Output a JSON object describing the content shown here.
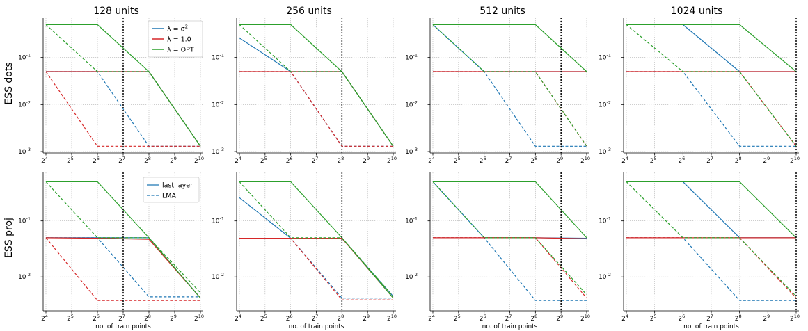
{
  "figure": {
    "column_titles": [
      "128 units",
      "256 units",
      "512 units",
      "1024 units"
    ],
    "row_labels": [
      "ESS dots",
      "ESS proj"
    ],
    "xlabel": "no. of train points",
    "legend_lambda": {
      "entries": [
        {
          "pre": "λ = σ",
          "sup": "2",
          "color": "#1f77b4"
        },
        {
          "pre": "λ = 1.0",
          "sup": "",
          "color": "#d62728"
        },
        {
          "pre": "λ =  OPT",
          "sup": "",
          "color": "#2ca02c"
        }
      ]
    },
    "legend_style": {
      "entries": [
        {
          "label": "last layer",
          "style": "solid"
        },
        {
          "label": "LMA",
          "style": "dashed"
        }
      ]
    },
    "colors": {
      "sigma2": "#1f77b4",
      "one": "#d62728",
      "opt": "#2ca02c"
    }
  },
  "chart_data": [
    {
      "type": "line",
      "title": "128 units",
      "ylabel": "ESS dots",
      "xlabel": "",
      "x_scale": "log2",
      "y_scale": "log10",
      "x": [
        16,
        64,
        256,
        1024
      ],
      "xlim": [
        16,
        1024
      ],
      "ylim": [
        0.001,
        0.6
      ],
      "x_ticks": [
        16,
        32,
        64,
        128,
        256,
        512,
        1024
      ],
      "y_ticks": [
        0.001,
        0.01,
        0.1
      ],
      "vline": 128,
      "series": [
        {
          "name": "λ = σ², last layer",
          "color": "sigma2",
          "style": "solid",
          "values": [
            0.05,
            0.05,
            0.05,
            0.0013
          ]
        },
        {
          "name": "λ = σ², LMA",
          "color": "sigma2",
          "style": "dashed",
          "values": [
            0.05,
            0.05,
            0.0013,
            0.0013
          ]
        },
        {
          "name": "λ = 1.0, last layer",
          "color": "one",
          "style": "solid",
          "values": [
            0.05,
            0.05,
            0.05,
            0.0013
          ]
        },
        {
          "name": "λ = 1.0, LMA",
          "color": "one",
          "style": "dashed",
          "values": [
            0.05,
            0.0013,
            0.0013,
            0.0013
          ]
        },
        {
          "name": "λ = OPT, last layer",
          "color": "opt",
          "style": "solid",
          "values": [
            0.5,
            0.5,
            0.05,
            0.0013
          ]
        },
        {
          "name": "λ = OPT, LMA",
          "color": "opt",
          "style": "dashed",
          "values": [
            0.5,
            0.05,
            0.05,
            0.0013
          ]
        }
      ]
    },
    {
      "type": "line",
      "title": "256 units",
      "ylabel": "",
      "xlabel": "",
      "x_scale": "log2",
      "y_scale": "log10",
      "x": [
        16,
        64,
        256,
        1024
      ],
      "xlim": [
        16,
        1024
      ],
      "ylim": [
        0.001,
        0.6
      ],
      "x_ticks": [
        16,
        32,
        64,
        128,
        256,
        512,
        1024
      ],
      "y_ticks": [
        0.001,
        0.01,
        0.1
      ],
      "vline": 256,
      "series": [
        {
          "name": "λ = σ², last layer",
          "color": "sigma2",
          "style": "solid",
          "values": [
            0.26,
            0.05,
            0.05,
            0.0013
          ]
        },
        {
          "name": "λ = σ², LMA",
          "color": "sigma2",
          "style": "dashed",
          "values": [
            0.05,
            0.05,
            0.0013,
            0.0013
          ]
        },
        {
          "name": "λ = 1.0, last layer",
          "color": "one",
          "style": "solid",
          "values": [
            0.05,
            0.05,
            0.05,
            0.0013
          ]
        },
        {
          "name": "λ = 1.0, LMA",
          "color": "one",
          "style": "dashed",
          "values": [
            0.05,
            0.05,
            0.0013,
            0.0013
          ]
        },
        {
          "name": "λ = OPT, last layer",
          "color": "opt",
          "style": "solid",
          "values": [
            0.5,
            0.5,
            0.05,
            0.0013
          ]
        },
        {
          "name": "λ = OPT, LMA",
          "color": "opt",
          "style": "dashed",
          "values": [
            0.5,
            0.05,
            0.05,
            0.0013
          ]
        }
      ]
    },
    {
      "type": "line",
      "title": "512 units",
      "ylabel": "",
      "xlabel": "",
      "x_scale": "log2",
      "y_scale": "log10",
      "x": [
        16,
        64,
        256,
        1024
      ],
      "xlim": [
        16,
        1024
      ],
      "ylim": [
        0.001,
        0.6
      ],
      "x_ticks": [
        16,
        32,
        64,
        128,
        256,
        512,
        1024
      ],
      "y_ticks": [
        0.001,
        0.01,
        0.1
      ],
      "vline": 512,
      "series": [
        {
          "name": "λ = σ², last layer",
          "color": "sigma2",
          "style": "solid",
          "values": [
            0.5,
            0.05,
            0.05,
            0.05
          ]
        },
        {
          "name": "λ = σ², LMA",
          "color": "sigma2",
          "style": "dashed",
          "values": [
            0.05,
            0.05,
            0.0013,
            0.0013
          ]
        },
        {
          "name": "λ = 1.0, last layer",
          "color": "one",
          "style": "solid",
          "values": [
            0.05,
            0.05,
            0.05,
            0.05
          ]
        },
        {
          "name": "λ = 1.0, LMA",
          "color": "one",
          "style": "dashed",
          "values": [
            0.05,
            0.05,
            0.05,
            0.0013
          ]
        },
        {
          "name": "λ = OPT, last layer",
          "color": "opt",
          "style": "solid",
          "values": [
            0.5,
            0.5,
            0.5,
            0.05
          ]
        },
        {
          "name": "λ = OPT, LMA",
          "color": "opt",
          "style": "dashed",
          "values": [
            0.5,
            0.05,
            0.05,
            0.0013
          ]
        }
      ]
    },
    {
      "type": "line",
      "title": "1024 units",
      "ylabel": "",
      "xlabel": "",
      "x_scale": "log2",
      "y_scale": "log10",
      "x": [
        16,
        64,
        256,
        1024
      ],
      "xlim": [
        16,
        1024
      ],
      "ylim": [
        0.001,
        0.6
      ],
      "x_ticks": [
        16,
        32,
        64,
        128,
        256,
        512,
        1024
      ],
      "y_ticks": [
        0.001,
        0.01,
        0.1
      ],
      "vline": 1024,
      "series": [
        {
          "name": "λ = σ², last layer",
          "color": "sigma2",
          "style": "solid",
          "values": [
            0.5,
            0.5,
            0.05,
            0.05
          ]
        },
        {
          "name": "λ = σ², LMA",
          "color": "sigma2",
          "style": "dashed",
          "values": [
            0.05,
            0.05,
            0.0013,
            0.0013
          ]
        },
        {
          "name": "λ = 1.0, last layer",
          "color": "one",
          "style": "solid",
          "values": [
            0.05,
            0.05,
            0.05,
            0.05
          ]
        },
        {
          "name": "λ = 1.0, LMA",
          "color": "one",
          "style": "dashed",
          "values": [
            0.05,
            0.05,
            0.05,
            0.0013
          ]
        },
        {
          "name": "λ = OPT, last layer",
          "color": "opt",
          "style": "solid",
          "values": [
            0.5,
            0.5,
            0.5,
            0.05
          ]
        },
        {
          "name": "λ = OPT, LMA",
          "color": "opt",
          "style": "dashed",
          "values": [
            0.5,
            0.05,
            0.05,
            0.0013
          ]
        }
      ]
    },
    {
      "type": "line",
      "title": "",
      "ylabel": "ESS proj",
      "xlabel": "no. of train points",
      "x_scale": "log2",
      "y_scale": "log10",
      "x": [
        16,
        64,
        256,
        1024
      ],
      "xlim": [
        16,
        1024
      ],
      "ylim": [
        0.0033,
        0.6
      ],
      "x_ticks": [
        16,
        32,
        64,
        128,
        256,
        512,
        1024
      ],
      "y_ticks": [
        0.01,
        0.1
      ],
      "vline": 128,
      "series": [
        {
          "name": "λ = σ², last layer",
          "color": "sigma2",
          "style": "solid",
          "values": [
            0.05,
            0.05,
            0.05,
            0.0042
          ]
        },
        {
          "name": "λ = σ², LMA",
          "color": "sigma2",
          "style": "dashed",
          "values": [
            0.05,
            0.05,
            0.0044,
            0.0044
          ]
        },
        {
          "name": "λ = 1.0, last layer",
          "color": "one",
          "style": "solid",
          "values": [
            0.05,
            0.049,
            0.047,
            0.0042
          ]
        },
        {
          "name": "λ = 1.0, LMA",
          "color": "one",
          "style": "dashed",
          "values": [
            0.05,
            0.0038,
            0.0038,
            0.0038
          ]
        },
        {
          "name": "λ = OPT, last layer",
          "color": "opt",
          "style": "solid",
          "values": [
            0.5,
            0.5,
            0.05,
            0.0042
          ]
        },
        {
          "name": "λ = OPT, LMA",
          "color": "opt",
          "style": "dashed",
          "values": [
            0.5,
            0.05,
            0.05,
            0.0052
          ]
        }
      ]
    },
    {
      "type": "line",
      "title": "",
      "ylabel": "",
      "xlabel": "no. of train points",
      "x_scale": "log2",
      "y_scale": "log10",
      "x": [
        16,
        64,
        256,
        1024
      ],
      "xlim": [
        16,
        1024
      ],
      "ylim": [
        0.0033,
        0.6
      ],
      "x_ticks": [
        16,
        32,
        64,
        128,
        256,
        512,
        1024
      ],
      "y_ticks": [
        0.01,
        0.1
      ],
      "vline": 256,
      "series": [
        {
          "name": "λ = σ², last layer",
          "color": "sigma2",
          "style": "solid",
          "values": [
            0.26,
            0.049,
            0.049,
            0.0045
          ]
        },
        {
          "name": "λ = σ², LMA",
          "color": "sigma2",
          "style": "dashed",
          "values": [
            0.049,
            0.049,
            0.0042,
            0.0042
          ]
        },
        {
          "name": "λ = 1.0, last layer",
          "color": "one",
          "style": "solid",
          "values": [
            0.049,
            0.049,
            0.049,
            0.0042
          ]
        },
        {
          "name": "λ = 1.0, LMA",
          "color": "one",
          "style": "dashed",
          "values": [
            0.049,
            0.049,
            0.0039,
            0.0039
          ]
        },
        {
          "name": "λ = OPT, last layer",
          "color": "opt",
          "style": "solid",
          "values": [
            0.5,
            0.5,
            0.05,
            0.0042
          ]
        },
        {
          "name": "λ = OPT, LMA",
          "color": "opt",
          "style": "dashed",
          "values": [
            0.5,
            0.05,
            0.05,
            0.0045
          ]
        }
      ]
    },
    {
      "type": "line",
      "title": "",
      "ylabel": "",
      "xlabel": "no. of train points",
      "x_scale": "log2",
      "y_scale": "log10",
      "x": [
        16,
        64,
        256,
        1024
      ],
      "xlim": [
        16,
        1024
      ],
      "ylim": [
        0.0033,
        0.6
      ],
      "x_ticks": [
        16,
        32,
        64,
        128,
        256,
        512,
        1024
      ],
      "y_ticks": [
        0.01,
        0.1
      ],
      "vline": 512,
      "series": [
        {
          "name": "λ = σ², last layer",
          "color": "sigma2",
          "style": "solid",
          "values": [
            0.5,
            0.05,
            0.05,
            0.049
          ]
        },
        {
          "name": "λ = σ², LMA",
          "color": "sigma2",
          "style": "dashed",
          "values": [
            0.05,
            0.05,
            0.0038,
            0.0038
          ]
        },
        {
          "name": "λ = 1.0, last layer",
          "color": "one",
          "style": "solid",
          "values": [
            0.05,
            0.05,
            0.05,
            0.048
          ]
        },
        {
          "name": "λ = 1.0, LMA",
          "color": "one",
          "style": "dashed",
          "values": [
            0.05,
            0.05,
            0.05,
            0.0042
          ]
        },
        {
          "name": "λ = OPT, last layer",
          "color": "opt",
          "style": "solid",
          "values": [
            0.5,
            0.5,
            0.5,
            0.05
          ]
        },
        {
          "name": "λ = OPT, LMA",
          "color": "opt",
          "style": "dashed",
          "values": [
            0.5,
            0.05,
            0.05,
            0.0048
          ]
        }
      ]
    },
    {
      "type": "line",
      "title": "",
      "ylabel": "",
      "xlabel": "no. of train points",
      "x_scale": "log2",
      "y_scale": "log10",
      "x": [
        16,
        64,
        256,
        1024
      ],
      "xlim": [
        16,
        1024
      ],
      "ylim": [
        0.0033,
        0.6
      ],
      "x_ticks": [
        16,
        32,
        64,
        128,
        256,
        512,
        1024
      ],
      "y_ticks": [
        0.01,
        0.1
      ],
      "vline": 1024,
      "series": [
        {
          "name": "λ = σ², last layer",
          "color": "sigma2",
          "style": "solid",
          "values": [
            0.5,
            0.5,
            0.05,
            0.05
          ]
        },
        {
          "name": "λ = σ², LMA",
          "color": "sigma2",
          "style": "dashed",
          "values": [
            0.05,
            0.05,
            0.0038,
            0.0038
          ]
        },
        {
          "name": "λ = 1.0, last layer",
          "color": "one",
          "style": "solid",
          "values": [
            0.05,
            0.05,
            0.05,
            0.05
          ]
        },
        {
          "name": "λ = 1.0, LMA",
          "color": "one",
          "style": "dashed",
          "values": [
            0.05,
            0.05,
            0.05,
            0.0042
          ]
        },
        {
          "name": "λ = OPT, last layer",
          "color": "opt",
          "style": "solid",
          "values": [
            0.5,
            0.5,
            0.5,
            0.05
          ]
        },
        {
          "name": "λ = OPT, LMA",
          "color": "opt",
          "style": "dashed",
          "values": [
            0.5,
            0.05,
            0.05,
            0.0045
          ]
        }
      ]
    }
  ]
}
